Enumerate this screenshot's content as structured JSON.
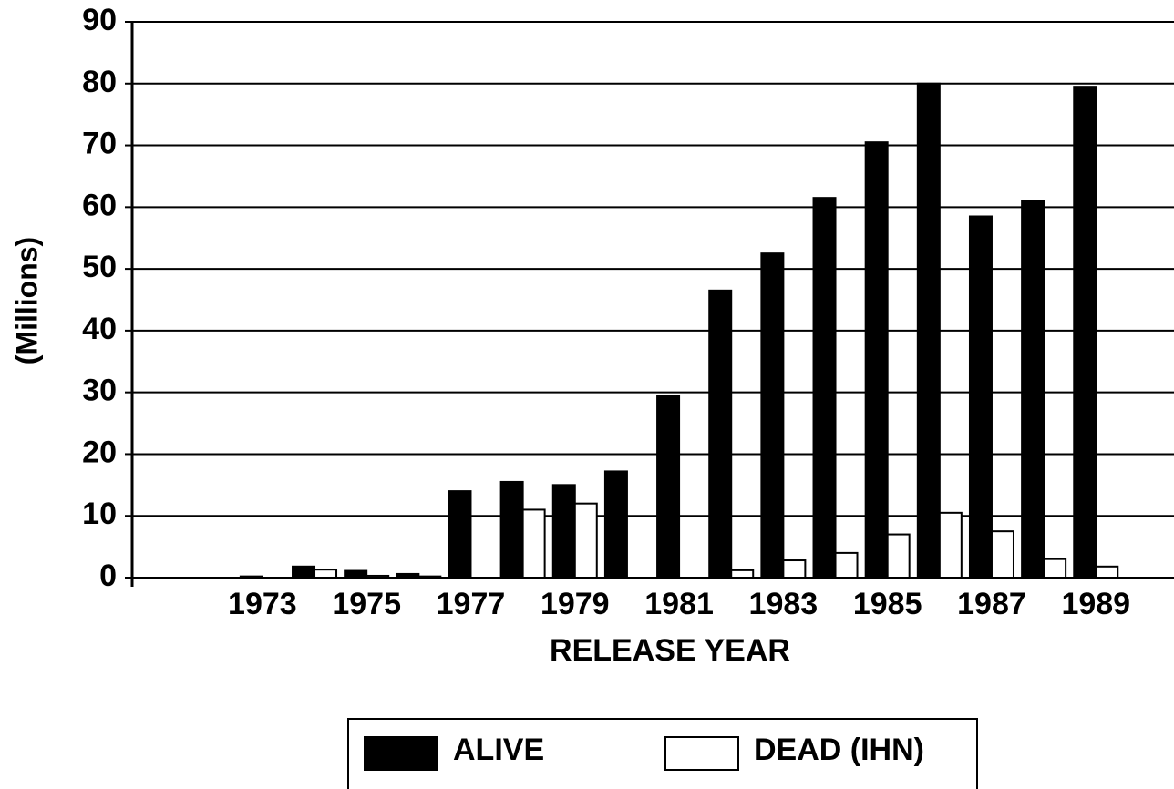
{
  "chart_data": {
    "type": "bar",
    "y_label": "(Millions)",
    "x_label": "RELEASE YEAR",
    "categories": [
      null,
      null,
      "1973",
      null,
      "1975",
      null,
      "1977",
      null,
      "1979",
      null,
      "1981",
      null,
      "1983",
      null,
      "1985",
      null,
      "1987",
      null,
      "1989",
      null
    ],
    "series": [
      {
        "name": "ALIVE",
        "color": "#000000",
        "values": [
          0,
          0,
          0.2,
          1.8,
          1.1,
          0.6,
          14,
          15.5,
          15,
          17.2,
          29.5,
          46.5,
          52.5,
          61.5,
          70.5,
          80,
          58.5,
          61,
          79.5,
          0
        ]
      },
      {
        "name": "DEAD (IHN)",
        "color": "#ffffff",
        "values": [
          0,
          0,
          0,
          1.3,
          0.3,
          0.2,
          0,
          11,
          12,
          0,
          0,
          1.2,
          2.8,
          4,
          7,
          10.5,
          7.5,
          3,
          1.8,
          0
        ]
      }
    ],
    "ylim": [
      0,
      90
    ],
    "yticks": [
      0,
      10,
      20,
      30,
      40,
      50,
      60,
      70,
      80,
      90
    ],
    "grid": true
  }
}
